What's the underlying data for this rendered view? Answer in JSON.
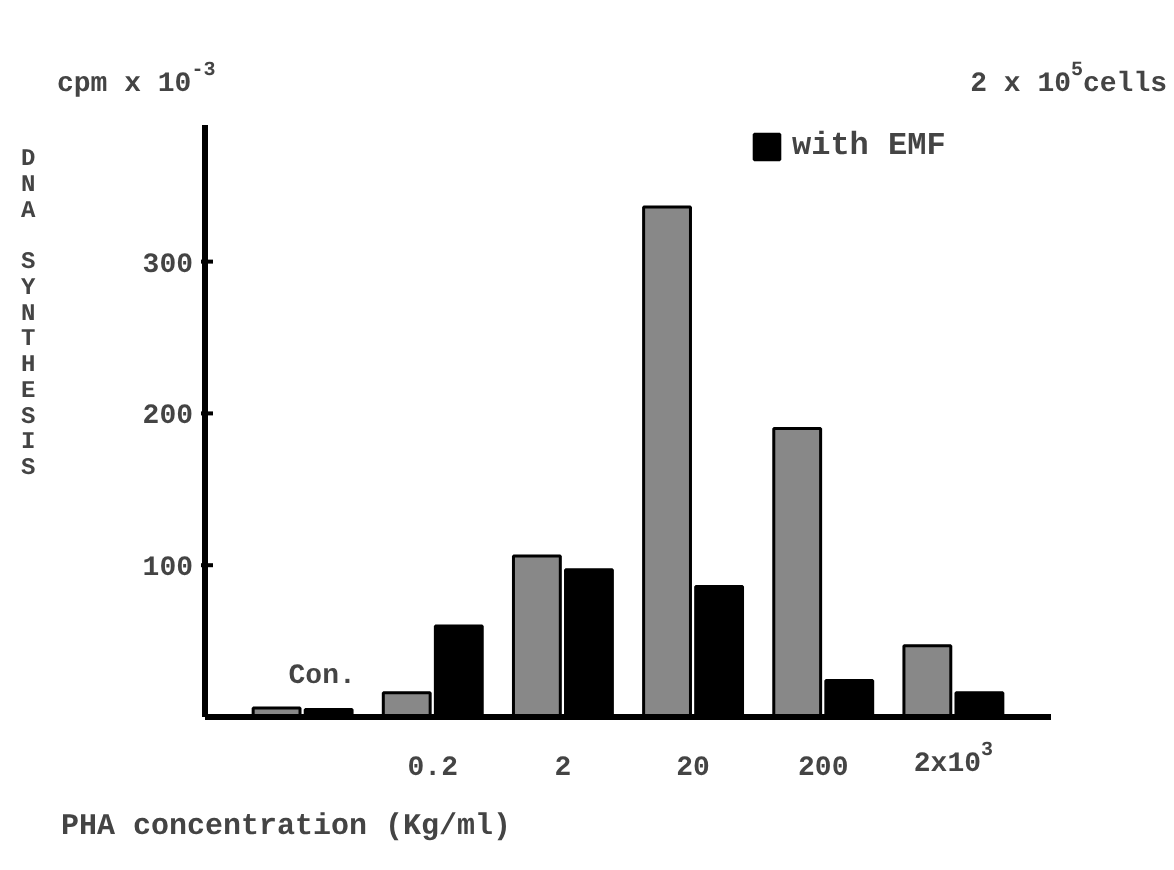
{
  "chart_data": {
    "type": "bar",
    "xlabel": "PHA concentration (Kg/ml)",
    "ylabel": "DNA SYNTHESIS",
    "annotations": [
      "cpm x 10$^{-3}$",
      "2 x 10$^{5}$cells"
    ],
    "categories": [
      "Con.",
      "0.2",
      "2",
      "20",
      "200",
      "2x10$^{3}$"
    ],
    "series": [
      {
        "color": "#888888",
        "values": [
          6,
          16,
          106,
          336,
          190,
          47
        ]
      },
      {
        "name": "with EMF",
        "color": "#000000",
        "values": [
          5,
          60,
          97,
          86,
          24,
          16
        ]
      }
    ],
    "ylim": [
      0,
      390
    ],
    "yticks": [
      100,
      200,
      300
    ],
    "grid": false,
    "legend": "top right"
  }
}
